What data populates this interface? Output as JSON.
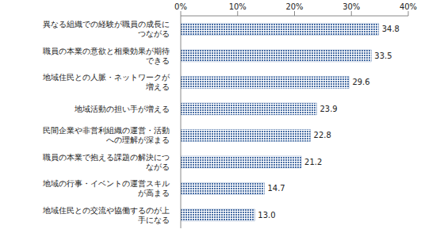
{
  "chart_data": {
    "type": "bar",
    "orientation": "horizontal",
    "categories": [
      "異なる組織での経験が職員の成長につながる",
      "職員の本業の意欲と相乗効果が期待できる",
      "地域住民との人脈・ネットワークが増える",
      "地域活動の担い手が増える",
      "民間企業や非営利組織の運営・活動への理解が深まる",
      "職員の本業で抱える課題の解決につながる",
      "地域の行事・イベントの運営スキルが高まる",
      "地域住民との交流や協働するのが上手になる"
    ],
    "values": [
      34.8,
      33.5,
      29.6,
      23.9,
      22.8,
      21.2,
      14.7,
      13.0
    ],
    "value_labels": [
      "34.8",
      "33.5",
      "29.6",
      "23.9",
      "22.8",
      "21.2",
      "14.7",
      "13.0"
    ],
    "color": "#4a6fa5",
    "xlim": [
      0,
      40
    ],
    "xticks": [
      {
        "value": 0,
        "label": "0%"
      },
      {
        "value": 10,
        "label": "10%"
      },
      {
        "value": 20,
        "label": "20%"
      },
      {
        "value": 30,
        "label": "30%"
      },
      {
        "value": 40,
        "label": "40%"
      }
    ],
    "grid": false,
    "data_labels": true
  }
}
